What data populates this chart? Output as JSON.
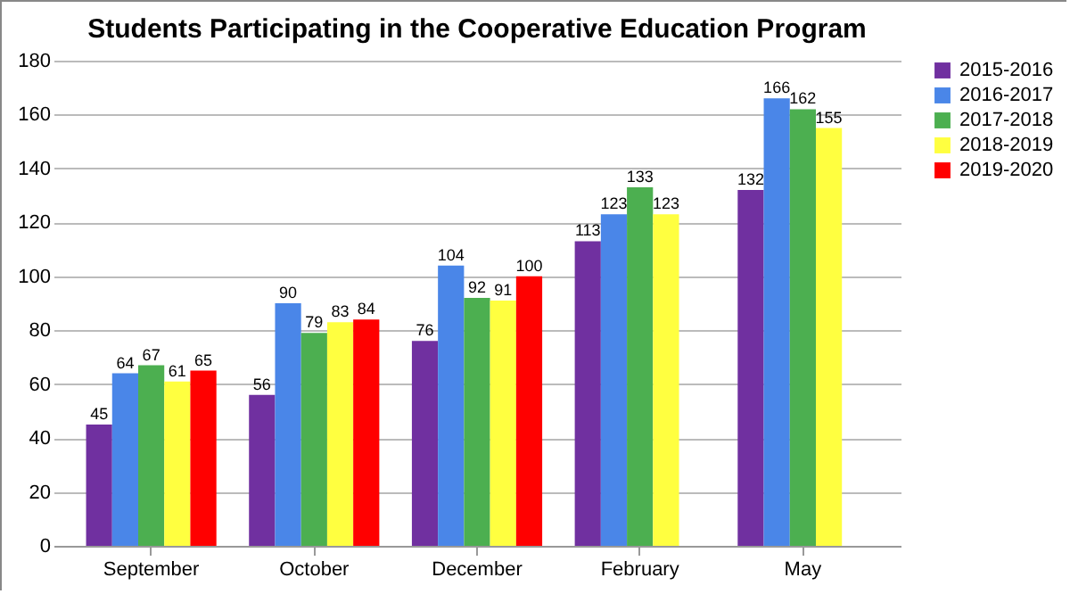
{
  "chart_data": {
    "type": "bar",
    "title": "Students Participating in the Cooperative Education Program",
    "categories": [
      "September",
      "October",
      "December",
      "February",
      "May"
    ],
    "series": [
      {
        "name": "2015-2016",
        "color": "#7030a0",
        "values": [
          45,
          56,
          76,
          113,
          132
        ]
      },
      {
        "name": "2016-2017",
        "color": "#4a86e8",
        "values": [
          64,
          90,
          104,
          123,
          166
        ]
      },
      {
        "name": "2017-2018",
        "color": "#4caf50",
        "values": [
          67,
          79,
          92,
          133,
          162
        ]
      },
      {
        "name": "2018-2019",
        "color": "#ffff40",
        "values": [
          61,
          83,
          91,
          123,
          155
        ]
      },
      {
        "name": "2019-2020",
        "color": "#ff0000",
        "values": [
          65,
          84,
          100,
          null,
          null
        ]
      }
    ],
    "ylim": [
      0,
      180
    ],
    "yticks": [
      0,
      20,
      40,
      60,
      80,
      100,
      120,
      140,
      160,
      180
    ],
    "grid": "y",
    "legend": "right",
    "data_labels": true
  }
}
